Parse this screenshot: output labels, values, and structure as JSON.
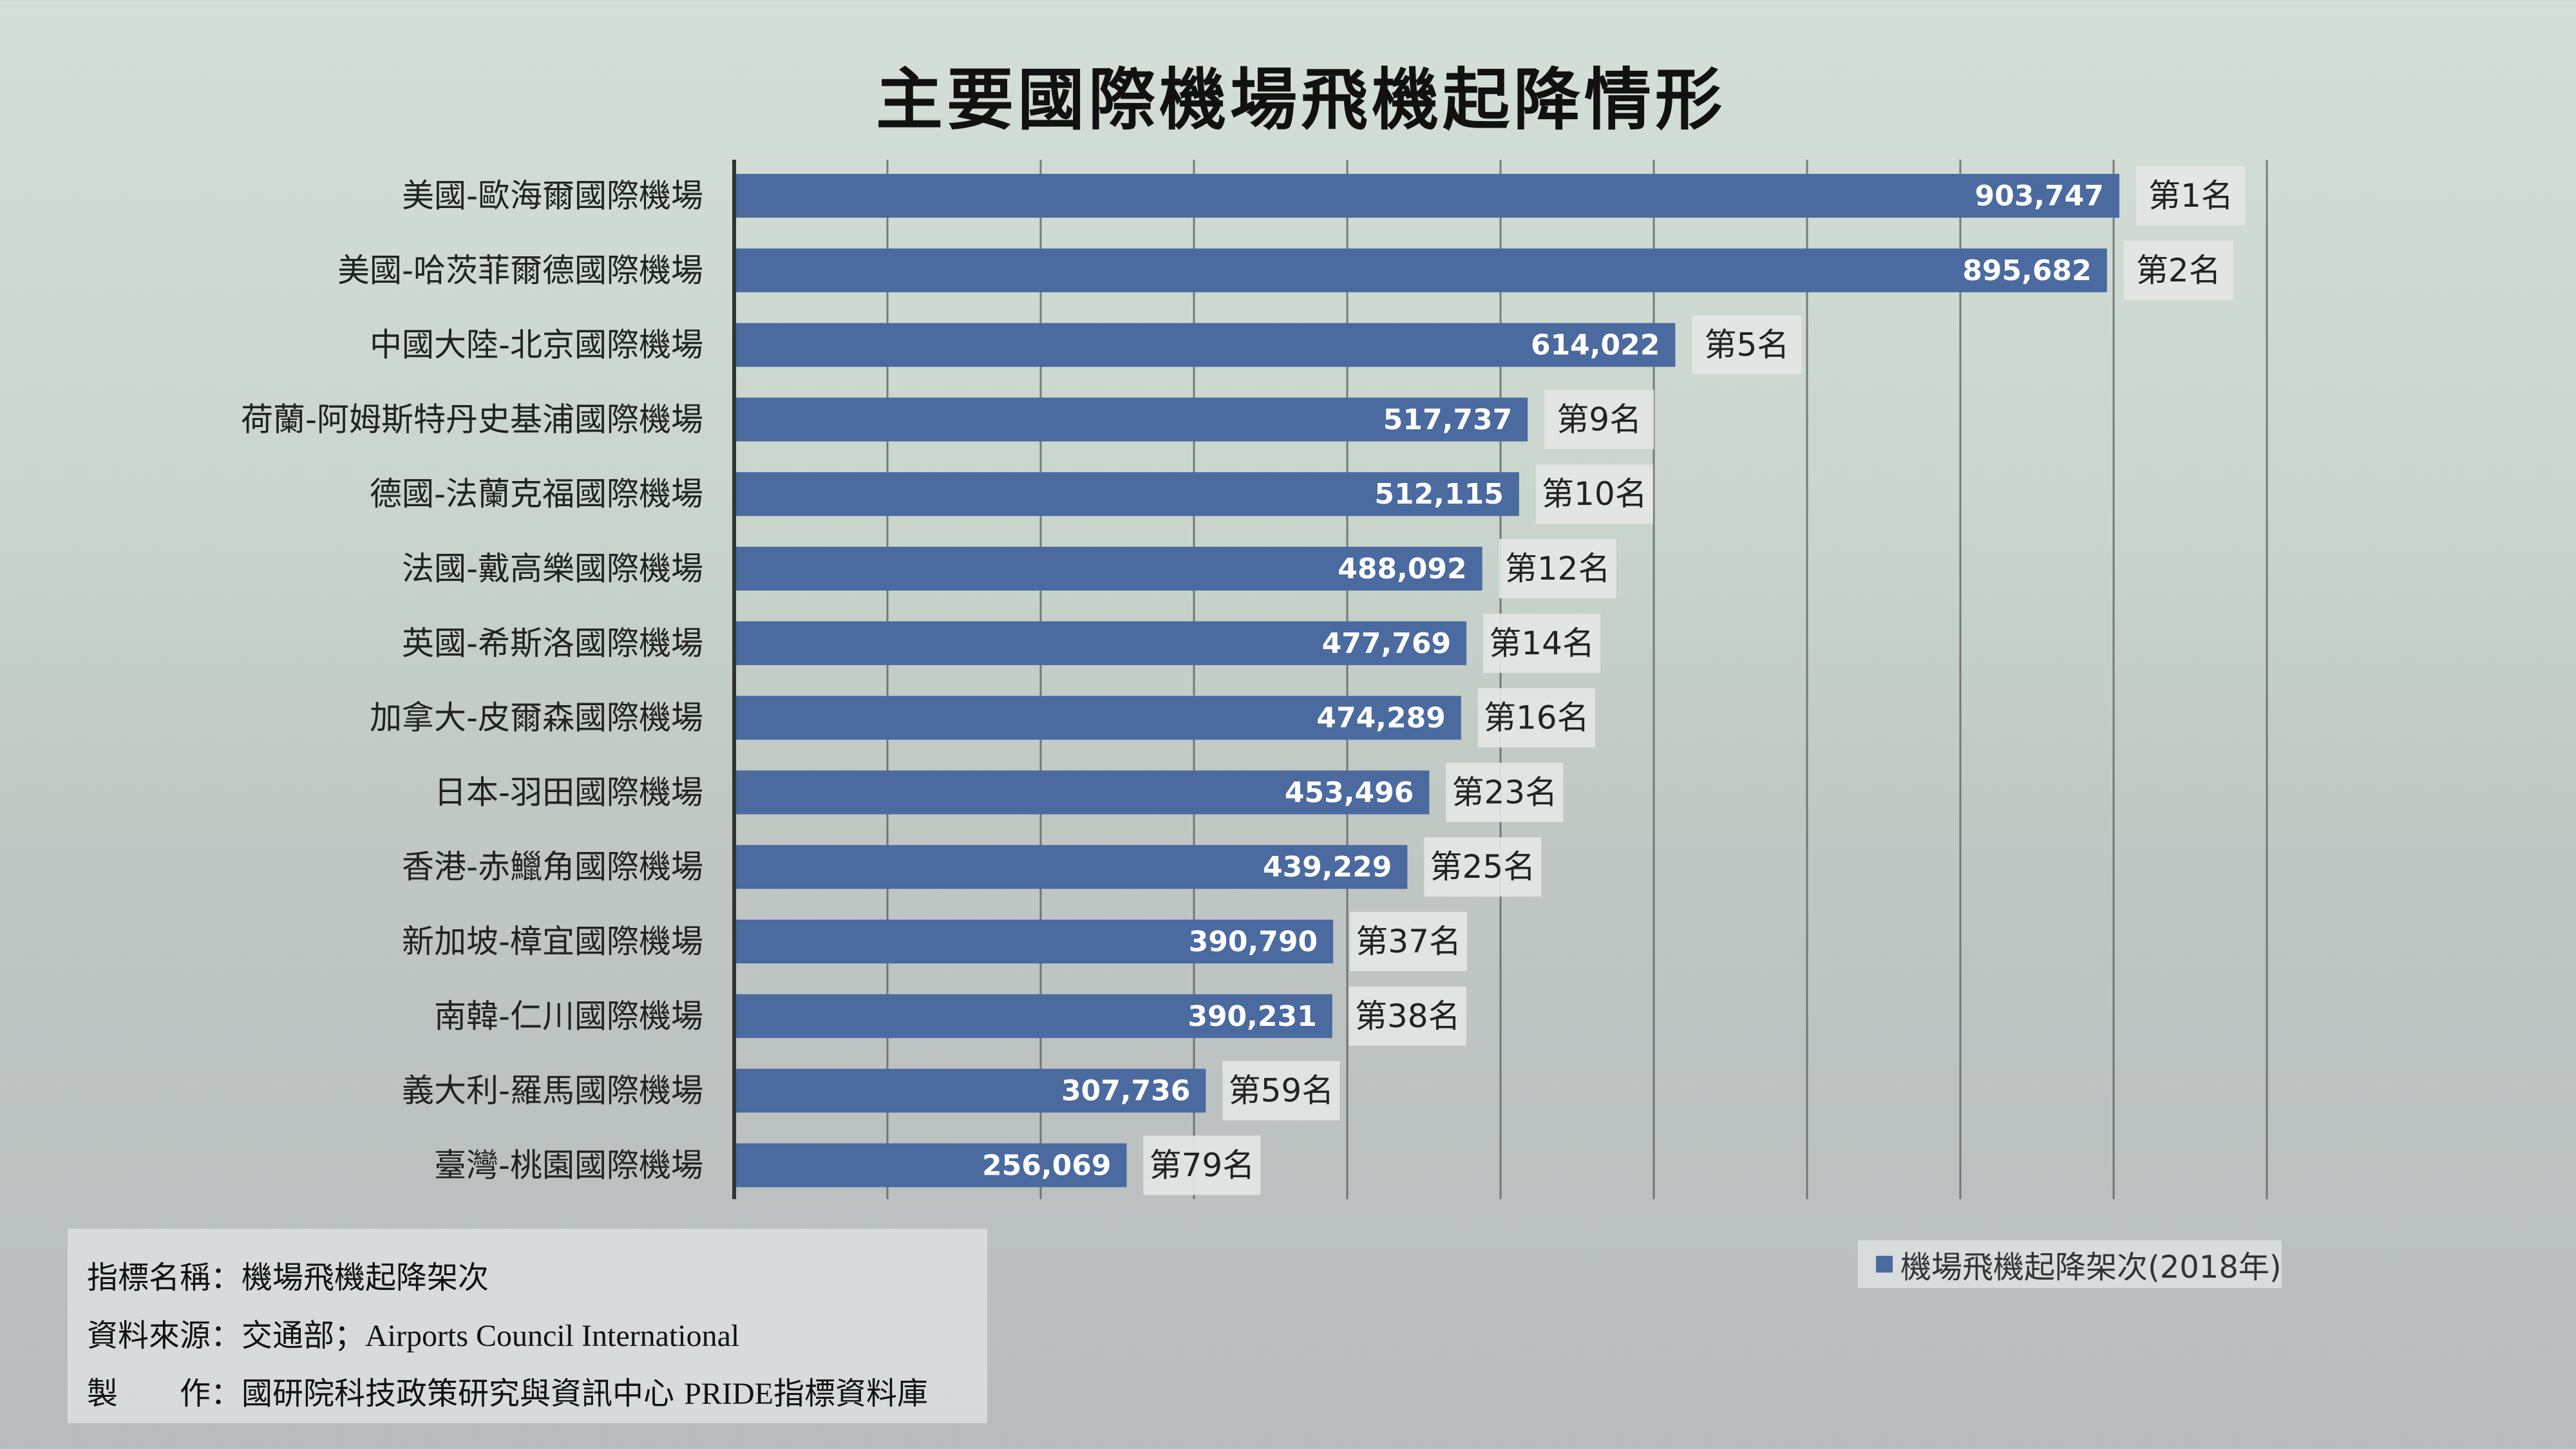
{
  "title": "主要國際機場飛機起降情形",
  "chart_data": {
    "type": "bar",
    "orientation": "horizontal",
    "title": "主要國際機場飛機起降情形",
    "categories": [
      "美國-歐海爾國際機場",
      "美國-哈茨菲爾德國際機場",
      "中國大陸-北京國際機場",
      "荷蘭-阿姆斯特丹史基浦國際機場",
      "德國-法蘭克福國際機場",
      "法國-戴高樂國際機場",
      "英國-希斯洛國際機場",
      "加拿大-皮爾森國際機場",
      "日本-羽田國際機場",
      "香港-赤鱲角國際機場",
      "新加坡-樟宜國際機場",
      "南韓-仁川國際機場",
      "義大利-羅馬國際機場",
      "臺灣-桃園國際機場"
    ],
    "values": [
      903747,
      895682,
      614022,
      517737,
      512115,
      488092,
      477769,
      474289,
      453496,
      439229,
      390790,
      390231,
      307736,
      256069
    ],
    "value_labels": [
      "903,747",
      "895,682",
      "614,022",
      "517,737",
      "512,115",
      "488,092",
      "477,769",
      "474,289",
      "453,496",
      "439,229",
      "390,790",
      "390,231",
      "307,736",
      "256,069"
    ],
    "rank_labels": [
      "第1名",
      "第2名",
      "第5名",
      "第9名",
      "第10名",
      "第12名",
      "第14名",
      "第16名",
      "第23名",
      "第25名",
      "第37名",
      "第38名",
      "第59名",
      "第79名"
    ],
    "series": [
      {
        "name": "機場飛機起降架次(2018年)"
      }
    ],
    "xlim": [
      0,
      1000000
    ],
    "grid": true,
    "legend_position": "bottom-right",
    "bar_color": "#4a6aa0"
  },
  "footer": {
    "indicator": "指標名稱：機場飛機起降架次",
    "source_prefix": "資料來源：交通部；",
    "source_en": "Airports Council International",
    "producer_prefix": "製　　作：國研院科技政策研究與資訊中心 ",
    "producer_en": "PRIDE",
    "producer_suffix": "指標資料庫"
  },
  "legend": {
    "label": "機場飛機起降架次(2018年)"
  }
}
